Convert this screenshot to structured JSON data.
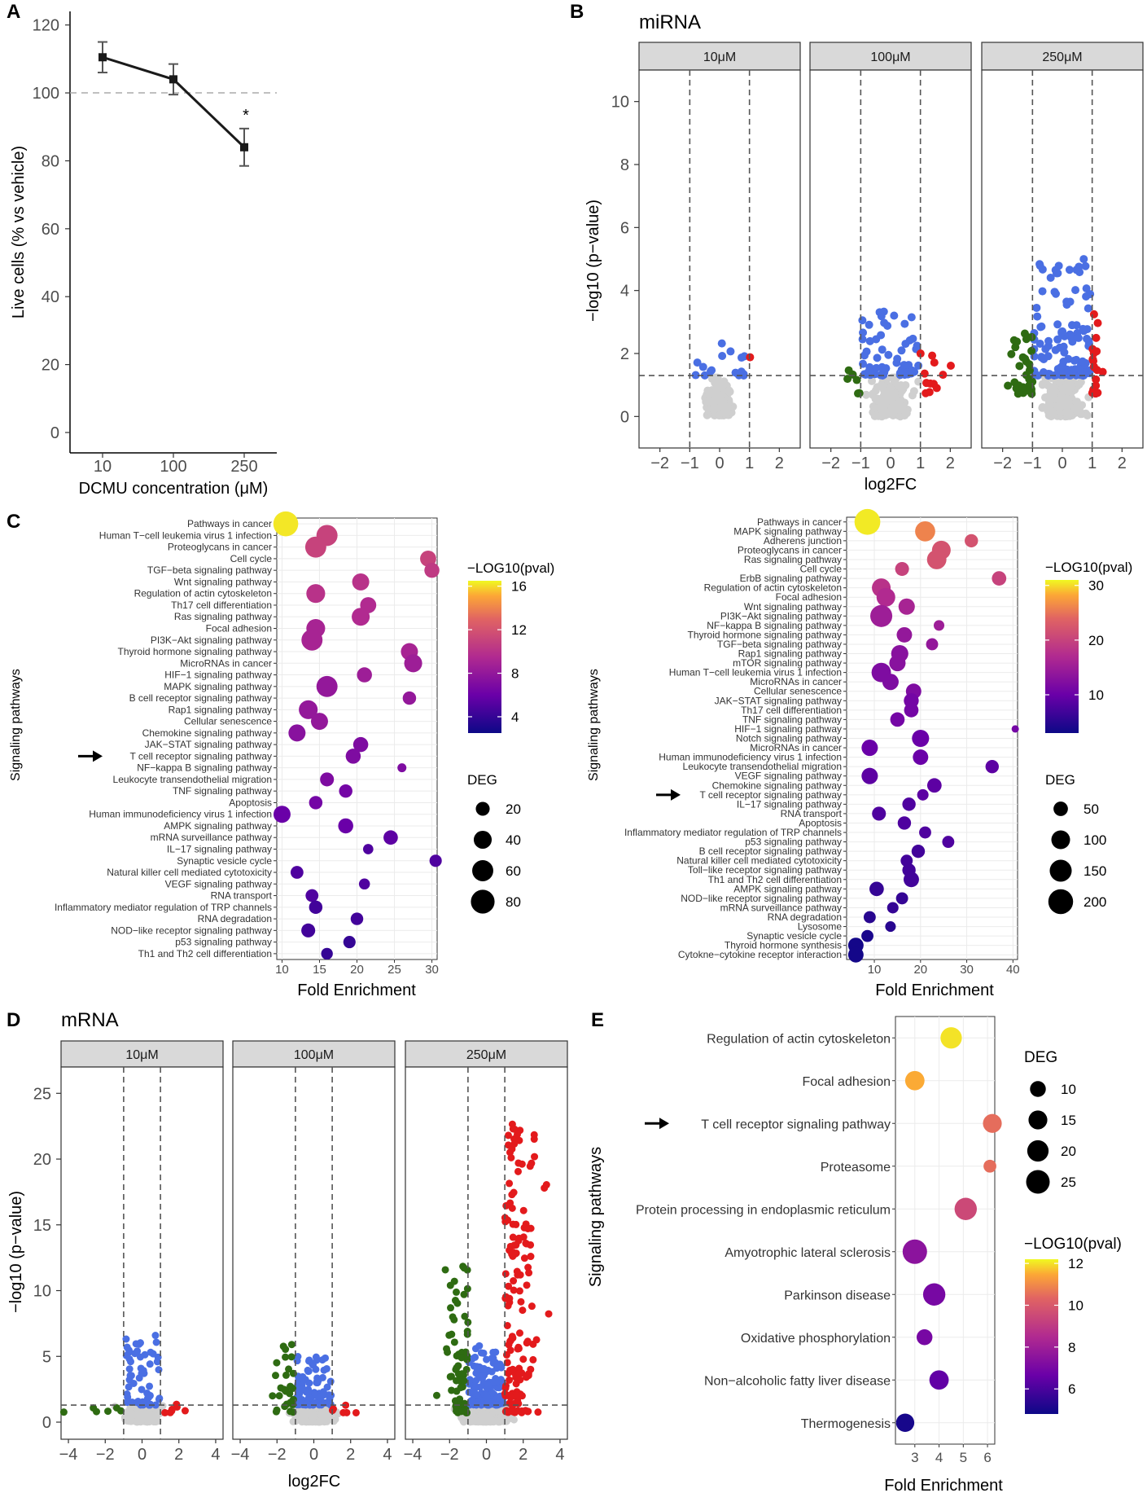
{
  "colors": {
    "up": "#e31a1c",
    "down": "#2e6b12",
    "sig": "#4a6fe3",
    "ns": "#cfcfcf",
    "grid": "#ebebeb",
    "strip": "#d9d9d9",
    "viridis_low": "#0d0887",
    "viridis_high": "#f0f921"
  },
  "chart_data": [
    {
      "panel": "A",
      "type": "line",
      "xlabel": "DCMU concentration (μM)",
      "ylabel": "Live cells (% vs vehicle)",
      "categories": [
        "10",
        "100",
        "250"
      ],
      "values": [
        110.5,
        104,
        84
      ],
      "errors": [
        4.5,
        4.5,
        5.5
      ],
      "reference_line": 100,
      "ylim": [
        -6,
        124
      ],
      "yticks": [
        "0",
        "20",
        "40",
        "60",
        "80",
        "100",
        "120"
      ],
      "annotation": "*"
    },
    {
      "panel": "B",
      "type": "scatter",
      "title": "miRNA",
      "facets": [
        "10μM",
        "100μM",
        "250μM"
      ],
      "xlabel": "log2FC",
      "ylabel": "−log10 (p−value)",
      "xlim": [
        -2.7,
        2.7
      ],
      "ylim": [
        -1,
        11
      ],
      "xticks": [
        "−2",
        "−1",
        "0",
        "1",
        "2"
      ],
      "yticks": [
        "0",
        "2",
        "4",
        "6",
        "8",
        "10"
      ],
      "fc_threshold": 1,
      "p_threshold": 1.3
    },
    {
      "panel": "C-left",
      "type": "scatter",
      "xlabel": "Fold Enrichment",
      "ylabel": "Signaling pathways",
      "xlim": [
        9.3,
        30.7
      ],
      "xticks": [
        "10",
        "15",
        "20",
        "25",
        "30"
      ],
      "color_legend": {
        "title": "−LOG10(pval)",
        "ticks": [
          "16",
          "12",
          "8",
          "4"
        ],
        "range": [
          2.5,
          16.5
        ]
      },
      "size_legend": {
        "title": "DEG",
        "ticks": [
          "20",
          "40",
          "60",
          "80"
        ]
      },
      "highlight": "T cell receptor signaling pathway",
      "pathways": [
        {
          "name": "Pathways in cancer",
          "fe": 10.5,
          "size": 90,
          "pval": 16.2
        },
        {
          "name": "Human T−cell leukemia virus 1 infection",
          "fe": 16,
          "size": 60,
          "pval": 11
        },
        {
          "name": "Proteoglycans in cancer",
          "fe": 14.5,
          "size": 60,
          "pval": 11
        },
        {
          "name": "Cell cycle",
          "fe": 29.5,
          "size": 30,
          "pval": 11
        },
        {
          "name": "TGF−beta signaling pathway",
          "fe": 30,
          "size": 25,
          "pval": 10.5
        },
        {
          "name": "Wnt signaling pathway",
          "fe": 20.5,
          "size": 35,
          "pval": 10
        },
        {
          "name": "Regulation of actin cytoskeleton",
          "fe": 14.5,
          "size": 45,
          "pval": 10
        },
        {
          "name": "Th17 cell differentiation",
          "fe": 21.5,
          "size": 30,
          "pval": 9.5
        },
        {
          "name": "Ras signaling pathway",
          "fe": 20.5,
          "size": 40,
          "pval": 9.5
        },
        {
          "name": "Focal adhesion",
          "fe": 14.5,
          "size": 45,
          "pval": 9
        },
        {
          "name": "PI3K−Akt signaling pathway",
          "fe": 14,
          "size": 60,
          "pval": 9
        },
        {
          "name": "Thyroid hormone signaling pathway",
          "fe": 27,
          "size": 35,
          "pval": 9
        },
        {
          "name": "MicroRNAs in cancer",
          "fe": 27.5,
          "size": 40,
          "pval": 8.5
        },
        {
          "name": "HIF−1 signaling pathway",
          "fe": 21,
          "size": 25,
          "pval": 8.5
        },
        {
          "name": "MAPK signaling pathway",
          "fe": 16,
          "size": 60,
          "pval": 8
        },
        {
          "name": "B cell receptor signaling pathway",
          "fe": 27,
          "size": 18,
          "pval": 8
        },
        {
          "name": "Rap1 signaling pathway",
          "fe": 13.5,
          "size": 45,
          "pval": 8
        },
        {
          "name": "Cellular senescence",
          "fe": 15,
          "size": 35,
          "pval": 8
        },
        {
          "name": "Chemokine signaling pathway",
          "fe": 12,
          "size": 35,
          "pval": 7.5
        },
        {
          "name": "JAK−STAT signaling pathway",
          "fe": 20.5,
          "size": 25,
          "pval": 7
        },
        {
          "name": "T cell receptor signaling pathway",
          "fe": 19.5,
          "size": 25,
          "pval": 7
        },
        {
          "name": "NF−kappa B signaling pathway",
          "fe": 26,
          "size": 5,
          "pval": 7
        },
        {
          "name": "Leukocyte transendothelial migration",
          "fe": 16,
          "size": 20,
          "pval": 7
        },
        {
          "name": "TNF signaling pathway",
          "fe": 18.5,
          "size": 18,
          "pval": 6.5
        },
        {
          "name": "Apoptosis",
          "fe": 14.5,
          "size": 18,
          "pval": 6.5
        },
        {
          "name": "Human immunodeficiency virus 1 infection",
          "fe": 10,
          "size": 35,
          "pval": 6
        },
        {
          "name": "AMPK signaling pathway",
          "fe": 18.5,
          "size": 25,
          "pval": 6
        },
        {
          "name": "mRNA surveillance pathway",
          "fe": 24.5,
          "size": 22,
          "pval": 5.5
        },
        {
          "name": "IL−17 signaling pathway",
          "fe": 21.5,
          "size": 8,
          "pval": 5
        },
        {
          "name": "Synaptic vesicle cycle",
          "fe": 30.5,
          "size": 14,
          "pval": 5
        },
        {
          "name": "Natural killer cell mediated cytotoxicity",
          "fe": 12,
          "size": 16,
          "pval": 5
        },
        {
          "name": "VEGF signaling pathway",
          "fe": 21,
          "size": 10,
          "pval": 5
        },
        {
          "name": "RNA transport",
          "fe": 14,
          "size": 16,
          "pval": 5
        },
        {
          "name": "Inflammatory mediator regulation of TRP channels",
          "fe": 14.5,
          "size": 18,
          "pval": 4.5
        },
        {
          "name": "RNA degradation",
          "fe": 20,
          "size": 15,
          "pval": 4.5
        },
        {
          "name": "NOD−like receptor signaling pathway",
          "fe": 13.5,
          "size": 20,
          "pval": 4.5
        },
        {
          "name": "p53 signaling pathway",
          "fe": 19,
          "size": 14,
          "pval": 4
        },
        {
          "name": "Th1 and Th2 cell differentiation",
          "fe": 16,
          "size": 12,
          "pval": 4
        }
      ]
    },
    {
      "panel": "C-right",
      "type": "scatter",
      "xlabel": "Fold Enrichment",
      "ylabel": "Signaling pathways",
      "xlim": [
        4,
        41
      ],
      "xticks": [
        "10",
        "20",
        "30",
        "40"
      ],
      "color_legend": {
        "title": "−LOG10(pval)",
        "ticks": [
          "30",
          "20",
          "10"
        ],
        "range": [
          3,
          31
        ]
      },
      "size_legend": {
        "title": "DEG",
        "ticks": [
          "50",
          "100",
          "150",
          "200"
        ]
      },
      "highlight": "T cell receptor signaling pathway",
      "pathways": [
        {
          "name": "Pathways in cancer",
          "fe": 8.5,
          "size": 220,
          "pval": 30.5
        },
        {
          "name": "MAPK signaling pathway",
          "fe": 21,
          "size": 120,
          "pval": 26
        },
        {
          "name": "Adherens junction",
          "fe": 31,
          "size": 40,
          "pval": 22
        },
        {
          "name": "Proteoglycans in cancer",
          "fe": 24.5,
          "size": 100,
          "pval": 22
        },
        {
          "name": "Ras signaling pathway",
          "fe": 23.5,
          "size": 110,
          "pval": 22
        },
        {
          "name": "Cell cycle",
          "fe": 16,
          "size": 45,
          "pval": 20
        },
        {
          "name": "ErbB signaling pathway",
          "fe": 37,
          "size": 50,
          "pval": 20
        },
        {
          "name": "Regulation of actin cytoskeleton",
          "fe": 11.5,
          "size": 100,
          "pval": 18
        },
        {
          "name": "Focal adhesion",
          "fe": 12.5,
          "size": 100,
          "pval": 17
        },
        {
          "name": "Wnt signaling pathway",
          "fe": 17,
          "size": 70,
          "pval": 16
        },
        {
          "name": "PI3K−Akt signaling pathway",
          "fe": 11.5,
          "size": 150,
          "pval": 15
        },
        {
          "name": "NF−kappa B signaling pathway",
          "fe": 24,
          "size": 20,
          "pval": 15
        },
        {
          "name": "Thyroid hormone signaling pathway",
          "fe": 16.5,
          "size": 60,
          "pval": 14
        },
        {
          "name": "TGF−beta signaling pathway",
          "fe": 22.5,
          "size": 30,
          "pval": 14
        },
        {
          "name": "Rap1 signaling pathway",
          "fe": 15.5,
          "size": 80,
          "pval": 13
        },
        {
          "name": "mTOR signaling pathway",
          "fe": 15,
          "size": 70,
          "pval": 13
        },
        {
          "name": "Human T−cell leukemia virus 1 infection",
          "fe": 11.5,
          "size": 110,
          "pval": 12
        },
        {
          "name": "MicroRNAs in cancer",
          "fe": 13.5,
          "size": 70,
          "pval": 12
        },
        {
          "name": "Cellular senescence",
          "fe": 18.5,
          "size": 60,
          "pval": 12
        },
        {
          "name": "JAK−STAT signaling pathway",
          "fe": 18,
          "size": 55,
          "pval": 11
        },
        {
          "name": "Th17 cell differentiation",
          "fe": 18,
          "size": 50,
          "pval": 11
        },
        {
          "name": "TNF signaling pathway",
          "fe": 15,
          "size": 50,
          "pval": 11
        },
        {
          "name": "HIF−1 signaling pathway",
          "fe": 40.5,
          "size": 5,
          "pval": 11
        },
        {
          "name": "Notch signaling pathway",
          "fe": 20,
          "size": 80,
          "pval": 10
        },
        {
          "name": "MicroRNAs in cancer",
          "fe": 9,
          "size": 70,
          "pval": 10
        },
        {
          "name": "Human immunodeficiency virus 1 infection",
          "fe": 20,
          "size": 60,
          "pval": 10
        },
        {
          "name": "Leukocyte transendothelial migration",
          "fe": 35.5,
          "size": 40,
          "pval": 9
        },
        {
          "name": "VEGF signaling pathway",
          "fe": 9,
          "size": 70,
          "pval": 9
        },
        {
          "name": "Chemokine signaling pathway",
          "fe": 23,
          "size": 50,
          "pval": 9
        },
        {
          "name": "T cell receptor signaling pathway",
          "fe": 20.5,
          "size": 25,
          "pval": 9
        },
        {
          "name": "IL−17 signaling pathway",
          "fe": 17.5,
          "size": 40,
          "pval": 8
        },
        {
          "name": "RNA transport",
          "fe": 11,
          "size": 45,
          "pval": 8
        },
        {
          "name": "Apoptosis",
          "fe": 16.5,
          "size": 40,
          "pval": 8
        },
        {
          "name": "Inflammatory mediator regulation of TRP channels",
          "fe": 21,
          "size": 30,
          "pval": 8
        },
        {
          "name": "p53 signaling pathway",
          "fe": 26,
          "size": 30,
          "pval": 8
        },
        {
          "name": "B cell receptor signaling pathway",
          "fe": 19.5,
          "size": 40,
          "pval": 7
        },
        {
          "name": "Natural killer cell mediated cytotoxicity",
          "fe": 17,
          "size": 30,
          "pval": 7
        },
        {
          "name": "Toll−like receptor signaling pathway",
          "fe": 17.5,
          "size": 40,
          "pval": 7
        },
        {
          "name": "Th1 and Th2 cell differentiation",
          "fe": 18,
          "size": 60,
          "pval": 7
        },
        {
          "name": "AMPK signaling pathway",
          "fe": 10.5,
          "size": 50,
          "pval": 6
        },
        {
          "name": "NOD−like receptor signaling pathway",
          "fe": 16,
          "size": 30,
          "pval": 6
        },
        {
          "name": "mRNA surveillance pathway",
          "fe": 14,
          "size": 25,
          "pval": 6
        },
        {
          "name": "RNA degradation",
          "fe": 9,
          "size": 30,
          "pval": 5
        },
        {
          "name": "Lysosome",
          "fe": 13.5,
          "size": 20,
          "pval": 5
        },
        {
          "name": "Synaptic vesicle cycle",
          "fe": 8.5,
          "size": 30,
          "pval": 4
        },
        {
          "name": "Thyroid hormone synthesis",
          "fe": 6,
          "size": 60,
          "pval": 3.5
        },
        {
          "name": "Cytokne−cytokine receptor interaction",
          "fe": 6,
          "size": 60,
          "pval": 3.5
        }
      ]
    },
    {
      "panel": "D",
      "type": "scatter",
      "title": "mRNA",
      "facets": [
        "10μM",
        "100μM",
        "250μM"
      ],
      "xlabel": "log2FC",
      "ylabel": "−log10 (p−value)",
      "xlim": [
        -4.4,
        4.4
      ],
      "ylim": [
        -1.3,
        27
      ],
      "xticks": [
        "−4",
        "−2",
        "0",
        "2",
        "4"
      ],
      "yticks": [
        "0",
        "5",
        "10",
        "15",
        "20",
        "25"
      ],
      "fc_threshold": 1,
      "p_threshold": 1.3
    },
    {
      "panel": "E",
      "type": "scatter",
      "xlabel": "Fold Enrichment",
      "ylabel": "Signaling pathways",
      "xlim": [
        2.2,
        6.3
      ],
      "xticks": [
        "3",
        "4",
        "5",
        "6"
      ],
      "size_legend": {
        "title": "DEG",
        "ticks": [
          "10",
          "15",
          "20",
          "25"
        ]
      },
      "color_legend": {
        "title": "−LOG10(pval)",
        "ticks": [
          "12",
          "10",
          "8",
          "6"
        ],
        "range": [
          4.8,
          12.2
        ]
      },
      "highlight": "T cell receptor signaling pathway",
      "pathways": [
        {
          "name": "Regulation of actin cytoskeleton",
          "fe": 4.5,
          "size": 20,
          "pval": 12
        },
        {
          "name": "Focal adhesion",
          "fe": 3,
          "size": 16,
          "pval": 11.5
        },
        {
          "name": "T cell receptor signaling pathway",
          "fe": 6.2,
          "size": 15,
          "pval": 10.5
        },
        {
          "name": "Proteasome",
          "fe": 6.1,
          "size": 6,
          "pval": 10.5
        },
        {
          "name": "Protein processing in endoplasmic reticulum",
          "fe": 5.1,
          "size": 22,
          "pval": 9.5
        },
        {
          "name": "Amyotrophic lateral sclerosis",
          "fe": 3,
          "size": 27,
          "pval": 7.5
        },
        {
          "name": "Parkinson disease",
          "fe": 3.8,
          "size": 22,
          "pval": 7
        },
        {
          "name": "Oxidative phosphorylation",
          "fe": 3.4,
          "size": 10,
          "pval": 7
        },
        {
          "name": "Non−alcoholic fatty liver disease",
          "fe": 4,
          "size": 16,
          "pval": 6.5
        },
        {
          "name": "Thermogenesis",
          "fe": 2.6,
          "size": 14,
          "pval": 5
        }
      ]
    }
  ]
}
